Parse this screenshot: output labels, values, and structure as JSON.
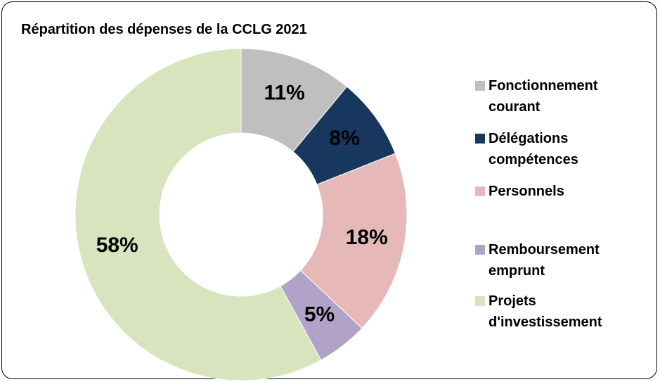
{
  "chart_data": {
    "type": "donut",
    "title": "Répartition des dépenses de la CCLG 2021",
    "categories": [
      "Fonctionnement courant",
      "Délégations compétences",
      "Personnels",
      "Remboursement emprunt",
      "Projets d'investissement"
    ],
    "values": [
      11,
      8,
      18,
      5,
      58
    ],
    "value_labels": [
      "11%",
      "8%",
      "18%",
      "5%",
      "58%"
    ],
    "colors": [
      "#bfbfbf",
      "#17375e",
      "#e6b9b8",
      "#b3a2c7",
      "#d7e4bd"
    ],
    "legend": "right"
  }
}
